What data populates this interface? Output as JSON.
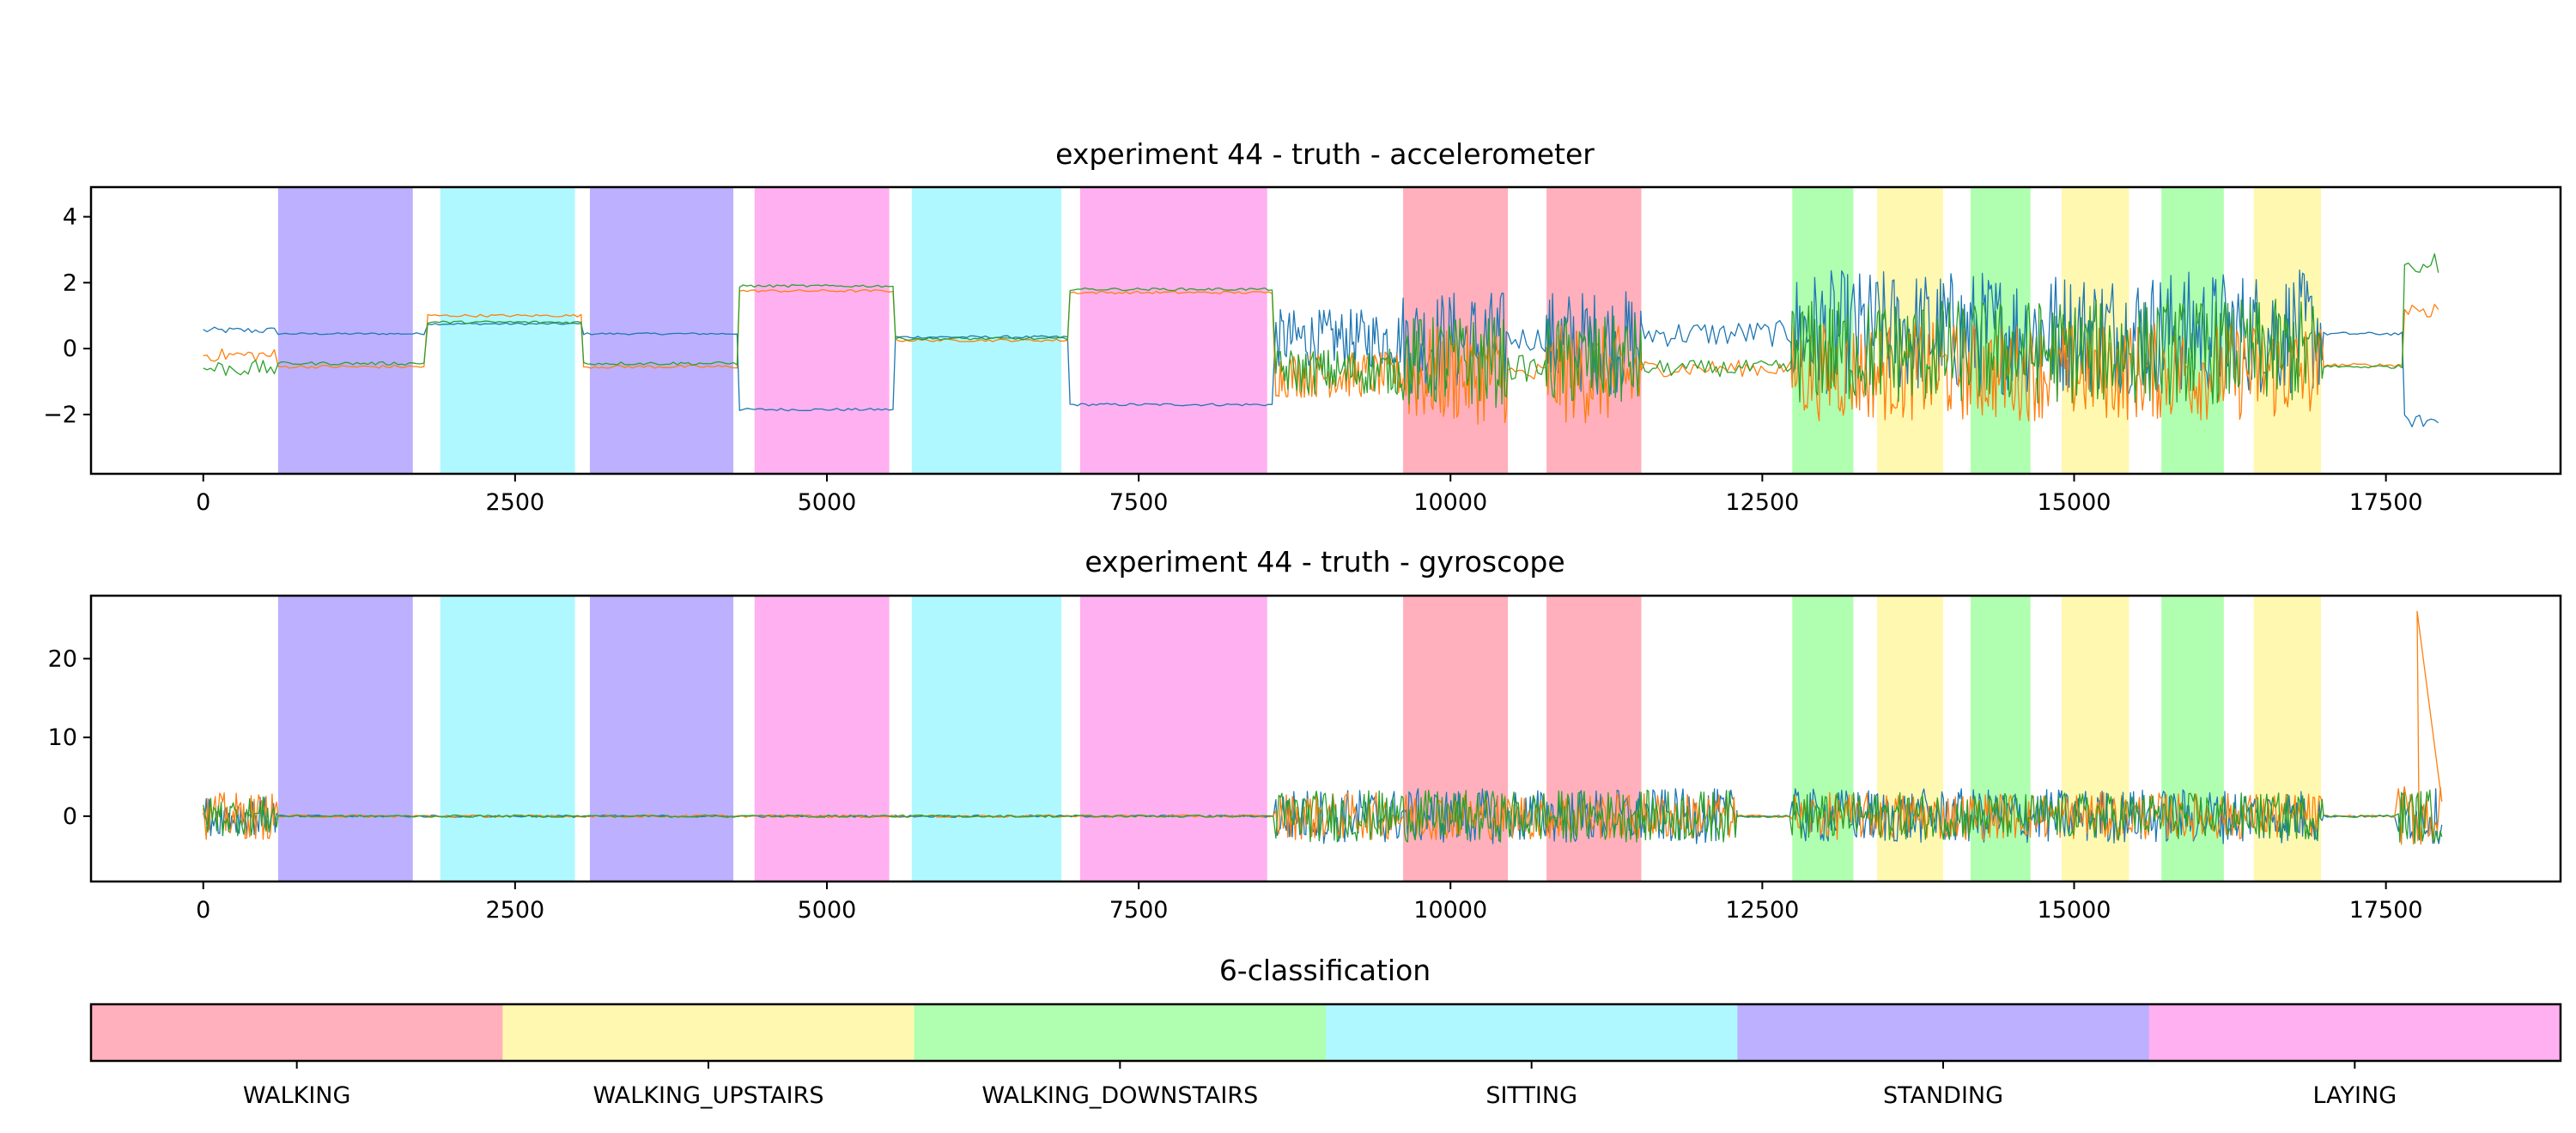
{
  "chart_data": [
    {
      "type": "line",
      "title": "experiment 44 - truth - accelerometer",
      "xlabel": "",
      "ylabel": "",
      "xlim": [
        -900,
        18900
      ],
      "ylim": [
        -3.8,
        4.9
      ],
      "xticks": [
        0,
        2500,
        5000,
        7500,
        10000,
        12500,
        15000,
        17500
      ],
      "xtick_labels": [
        "0",
        "2500",
        "5000",
        "7500",
        "10000",
        "12500",
        "15000",
        "17500"
      ],
      "yticks": [
        4,
        2,
        0,
        -2
      ],
      "ytick_labels": [
        "4",
        "2",
        "0",
        "−2"
      ],
      "grid": false,
      "activity_spans": [
        {
          "start": 600,
          "end": 1680,
          "activity": "STANDING"
        },
        {
          "start": 1900,
          "end": 2980,
          "activity": "SITTING"
        },
        {
          "start": 3100,
          "end": 4250,
          "activity": "STANDING"
        },
        {
          "start": 4420,
          "end": 5500,
          "activity": "LAYING"
        },
        {
          "start": 5680,
          "end": 6880,
          "activity": "SITTING"
        },
        {
          "start": 7030,
          "end": 8530,
          "activity": "LAYING"
        },
        {
          "start": 9620,
          "end": 10460,
          "activity": "WALKING"
        },
        {
          "start": 10770,
          "end": 11530,
          "activity": "WALKING"
        },
        {
          "start": 12740,
          "end": 13230,
          "activity": "WALKING_DOWNSTAIRS"
        },
        {
          "start": 13420,
          "end": 13950,
          "activity": "WALKING_UPSTAIRS"
        },
        {
          "start": 14170,
          "end": 14650,
          "activity": "WALKING_DOWNSTAIRS"
        },
        {
          "start": 14900,
          "end": 15440,
          "activity": "WALKING_UPSTAIRS"
        },
        {
          "start": 15700,
          "end": 16200,
          "activity": "WALKING_DOWNSTAIRS"
        },
        {
          "start": 16440,
          "end": 16980,
          "activity": "WALKING_UPSTAIRS"
        }
      ],
      "series": [
        {
          "color": "#1f77b4",
          "segments": [
            {
              "start": 0,
              "end": 600,
              "level": 0.55,
              "noise": 0.1
            },
            {
              "start": 600,
              "end": 1800,
              "level": 0.45,
              "noise": 0.03
            },
            {
              "start": 1800,
              "end": 3050,
              "level": 0.75,
              "noise": 0.03
            },
            {
              "start": 3050,
              "end": 4300,
              "level": 0.45,
              "noise": 0.03
            },
            {
              "start": 4300,
              "end": 5550,
              "level": -1.85,
              "noise": 0.04
            },
            {
              "start": 5550,
              "end": 6950,
              "level": 0.35,
              "noise": 0.04
            },
            {
              "start": 6950,
              "end": 8600,
              "level": -1.7,
              "noise": 0.04
            },
            {
              "start": 8600,
              "end": 9620,
              "level": 0.3,
              "noise": 0.9
            },
            {
              "start": 9620,
              "end": 10460,
              "level": 0.2,
              "noise": 1.6
            },
            {
              "start": 10460,
              "end": 10770,
              "level": 0.3,
              "noise": 0.4
            },
            {
              "start": 10770,
              "end": 11530,
              "level": 0.2,
              "noise": 1.6
            },
            {
              "start": 11530,
              "end": 12740,
              "level": 0.45,
              "noise": 0.4
            },
            {
              "start": 12740,
              "end": 17000,
              "level": 0.5,
              "noise": 1.9
            },
            {
              "start": 17000,
              "end": 17650,
              "level": 0.45,
              "noise": 0.05
            },
            {
              "start": 17650,
              "end": 17950,
              "level": -2.2,
              "noise": 0.2
            }
          ]
        },
        {
          "color": "#ff7f0e",
          "segments": [
            {
              "start": 0,
              "end": 600,
              "level": -0.2,
              "noise": 0.2
            },
            {
              "start": 600,
              "end": 1800,
              "level": -0.55,
              "noise": 0.05
            },
            {
              "start": 1800,
              "end": 3050,
              "level": 1.0,
              "noise": 0.04
            },
            {
              "start": 3050,
              "end": 4300,
              "level": -0.55,
              "noise": 0.05
            },
            {
              "start": 4300,
              "end": 5550,
              "level": 1.75,
              "noise": 0.04
            },
            {
              "start": 5550,
              "end": 6950,
              "level": 0.25,
              "noise": 0.04
            },
            {
              "start": 6950,
              "end": 8600,
              "level": 1.7,
              "noise": 0.04
            },
            {
              "start": 8600,
              "end": 9620,
              "level": -0.8,
              "noise": 0.7
            },
            {
              "start": 9620,
              "end": 10460,
              "level": -0.8,
              "noise": 1.5
            },
            {
              "start": 10460,
              "end": 10770,
              "level": -0.8,
              "noise": 0.4
            },
            {
              "start": 10770,
              "end": 11530,
              "level": -0.8,
              "noise": 1.5
            },
            {
              "start": 11530,
              "end": 12740,
              "level": -0.6,
              "noise": 0.25
            },
            {
              "start": 12740,
              "end": 17000,
              "level": -0.7,
              "noise": 1.5
            },
            {
              "start": 17000,
              "end": 17650,
              "level": -0.5,
              "noise": 0.05
            },
            {
              "start": 17650,
              "end": 17950,
              "level": 1.2,
              "noise": 0.3
            }
          ]
        },
        {
          "color": "#2ca02c",
          "segments": [
            {
              "start": 0,
              "end": 600,
              "level": -0.6,
              "noise": 0.25
            },
            {
              "start": 600,
              "end": 1800,
              "level": -0.45,
              "noise": 0.05
            },
            {
              "start": 1800,
              "end": 3050,
              "level": 0.8,
              "noise": 0.04
            },
            {
              "start": 3050,
              "end": 4300,
              "level": -0.45,
              "noise": 0.05
            },
            {
              "start": 4300,
              "end": 5550,
              "level": 1.9,
              "noise": 0.04
            },
            {
              "start": 5550,
              "end": 6950,
              "level": 0.3,
              "noise": 0.04
            },
            {
              "start": 6950,
              "end": 8600,
              "level": 1.8,
              "noise": 0.04
            },
            {
              "start": 8600,
              "end": 9620,
              "level": -0.7,
              "noise": 0.7
            },
            {
              "start": 9620,
              "end": 10460,
              "level": -0.4,
              "noise": 1.4
            },
            {
              "start": 10460,
              "end": 10770,
              "level": -0.6,
              "noise": 0.4
            },
            {
              "start": 10770,
              "end": 11530,
              "level": -0.4,
              "noise": 1.4
            },
            {
              "start": 11530,
              "end": 12740,
              "level": -0.6,
              "noise": 0.25
            },
            {
              "start": 12740,
              "end": 17000,
              "level": -0.1,
              "noise": 1.6
            },
            {
              "start": 17000,
              "end": 17650,
              "level": -0.55,
              "noise": 0.05
            },
            {
              "start": 17650,
              "end": 17950,
              "level": 2.6,
              "noise": 0.3
            }
          ]
        }
      ]
    },
    {
      "type": "line",
      "title": "experiment 44 - truth - gyroscope",
      "xlabel": "",
      "ylabel": "",
      "xlim": [
        -900,
        18900
      ],
      "ylim": [
        -8.3,
        28
      ],
      "xticks": [
        0,
        2500,
        5000,
        7500,
        10000,
        12500,
        15000,
        17500
      ],
      "xtick_labels": [
        "0",
        "2500",
        "5000",
        "7500",
        "10000",
        "12500",
        "15000",
        "17500"
      ],
      "yticks": [
        20,
        10,
        0
      ],
      "ytick_labels": [
        "20",
        "10",
        "0"
      ],
      "grid": false,
      "activity_spans": [
        {
          "start": 600,
          "end": 1680,
          "activity": "STANDING"
        },
        {
          "start": 1900,
          "end": 2980,
          "activity": "SITTING"
        },
        {
          "start": 3100,
          "end": 4250,
          "activity": "STANDING"
        },
        {
          "start": 4420,
          "end": 5500,
          "activity": "LAYING"
        },
        {
          "start": 5680,
          "end": 6880,
          "activity": "SITTING"
        },
        {
          "start": 7030,
          "end": 8530,
          "activity": "LAYING"
        },
        {
          "start": 9620,
          "end": 10460,
          "activity": "WALKING"
        },
        {
          "start": 10770,
          "end": 11530,
          "activity": "WALKING"
        },
        {
          "start": 12740,
          "end": 13230,
          "activity": "WALKING_DOWNSTAIRS"
        },
        {
          "start": 13420,
          "end": 13950,
          "activity": "WALKING_UPSTAIRS"
        },
        {
          "start": 14170,
          "end": 14650,
          "activity": "WALKING_DOWNSTAIRS"
        },
        {
          "start": 14900,
          "end": 15440,
          "activity": "WALKING_UPSTAIRS"
        },
        {
          "start": 15700,
          "end": 16200,
          "activity": "WALKING_DOWNSTAIRS"
        },
        {
          "start": 16440,
          "end": 16980,
          "activity": "WALKING_UPSTAIRS"
        }
      ],
      "series": [
        {
          "color": "#1f77b4",
          "segments": [
            {
              "start": 0,
              "end": 600,
              "level": 0,
              "noise": 2.5
            },
            {
              "start": 600,
              "end": 8600,
              "level": 0,
              "noise": 0.15
            },
            {
              "start": 8600,
              "end": 12300,
              "level": 0,
              "noise": 3.5
            },
            {
              "start": 12300,
              "end": 12740,
              "level": 0,
              "noise": 0.15
            },
            {
              "start": 12740,
              "end": 17000,
              "level": 0,
              "noise": 3.5
            },
            {
              "start": 17000,
              "end": 17600,
              "level": 0,
              "noise": 0.15
            },
            {
              "start": 17600,
              "end": 17950,
              "level": 0,
              "noise": 3.5
            }
          ]
        },
        {
          "color": "#ff7f0e",
          "segments": [
            {
              "start": 0,
              "end": 600,
              "level": 0,
              "noise": 3.0
            },
            {
              "start": 600,
              "end": 8600,
              "level": 0,
              "noise": 0.15
            },
            {
              "start": 8600,
              "end": 12300,
              "level": 0,
              "noise": 3.0
            },
            {
              "start": 12300,
              "end": 12740,
              "level": 0,
              "noise": 0.15
            },
            {
              "start": 12740,
              "end": 17000,
              "level": 0,
              "noise": 3.0
            },
            {
              "start": 17000,
              "end": 17600,
              "level": 0,
              "noise": 0.15
            },
            {
              "start": 17600,
              "end": 17950,
              "level": 0,
              "noise": 4.0
            }
          ]
        },
        {
          "color": "#2ca02c",
          "segments": [
            {
              "start": 0,
              "end": 600,
              "level": 0,
              "noise": 2.5
            },
            {
              "start": 600,
              "end": 8600,
              "level": 0,
              "noise": 0.15
            },
            {
              "start": 8600,
              "end": 12300,
              "level": 0,
              "noise": 3.3
            },
            {
              "start": 12300,
              "end": 12740,
              "level": 0,
              "noise": 0.15
            },
            {
              "start": 12740,
              "end": 17000,
              "level": 0,
              "noise": 3.0
            },
            {
              "start": 17000,
              "end": 17600,
              "level": 0,
              "noise": 0.15
            },
            {
              "start": 17600,
              "end": 17950,
              "level": 0,
              "noise": 3.5
            }
          ]
        }
      ],
      "annotations": [
        {
          "x": 17750,
          "y": 26,
          "note": "spike"
        }
      ]
    }
  ],
  "colorbar": {
    "title": "6-classification",
    "classes": [
      {
        "label": "WALKING",
        "color": "#ffb0bc"
      },
      {
        "label": "WALKING_UPSTAIRS",
        "color": "#fff8b0"
      },
      {
        "label": "WALKING_DOWNSTAIRS",
        "color": "#b0ffb0"
      },
      {
        "label": "SITTING",
        "color": "#b0f8ff"
      },
      {
        "label": "STANDING",
        "color": "#bcb0ff"
      },
      {
        "label": "LAYING",
        "color": "#ffb0f0"
      }
    ]
  }
}
